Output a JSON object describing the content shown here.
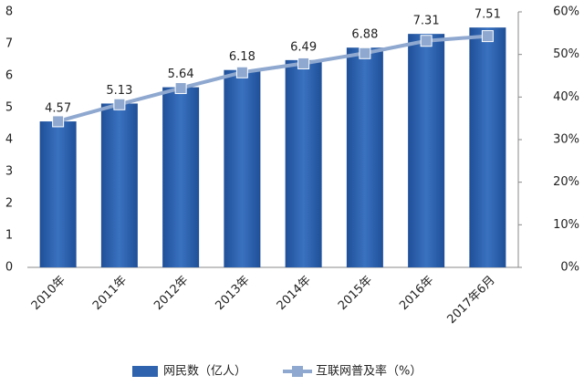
{
  "chart_data": {
    "type": "bar-line",
    "categories": [
      "2010年",
      "2011年",
      "2012年",
      "2013年",
      "2014年",
      "2015年",
      "2016年",
      "2017年6月"
    ],
    "series": [
      {
        "name": "网民数（亿人）",
        "type": "bar",
        "color": "#2f63ae",
        "values": [
          4.57,
          5.13,
          5.64,
          6.18,
          6.49,
          6.88,
          7.31,
          7.51
        ]
      },
      {
        "name": "互联网普及率（%）",
        "type": "line",
        "axis": "y2",
        "color": "#8ea8cf",
        "values": [
          34.3,
          38.3,
          42.1,
          45.8,
          47.9,
          50.3,
          53.2,
          54.3
        ]
      }
    ],
    "ylim": [
      0,
      8
    ],
    "yticks": [
      0,
      1,
      2,
      3,
      4,
      5,
      6,
      7,
      8
    ],
    "y2lim": [
      0,
      60
    ],
    "y2ticks": [
      {
        "value": 0,
        "label": "0%"
      },
      {
        "value": 10,
        "label": "10%"
      },
      {
        "value": 20,
        "label": "20%"
      },
      {
        "value": 30,
        "label": "30%"
      },
      {
        "value": 40,
        "label": "40%"
      },
      {
        "value": 50,
        "label": "50%"
      },
      {
        "value": 60,
        "label": "60%"
      }
    ],
    "legend": "bottom"
  }
}
